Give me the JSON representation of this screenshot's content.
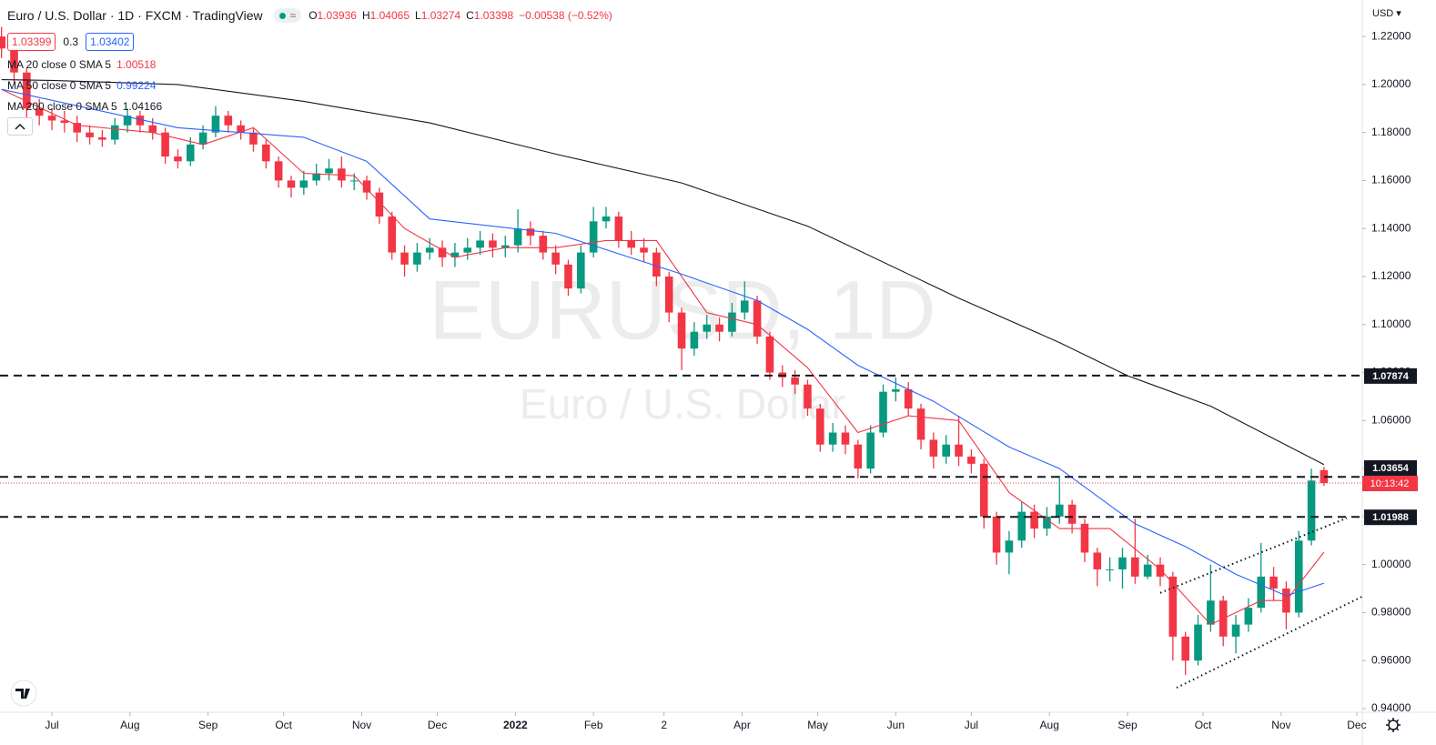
{
  "header": {
    "title": "Euro / U.S. Dollar · 1D · FXCM · TradingView",
    "ohlc": [
      {
        "key": "O",
        "value": "1.03936"
      },
      {
        "key": "H",
        "value": "1.04065"
      },
      {
        "key": "L",
        "value": "1.03274"
      },
      {
        "key": "C",
        "value": "1.03398"
      }
    ],
    "change": "−0.00538 (−0.52%)",
    "bid": "1.03399",
    "spread": "0.3",
    "ask": "1.03402",
    "currency": "USD",
    "countdown": "10:13:42",
    "watermark": "EURUSD, 1D",
    "watermark_sub": "Euro / U.S. Dollar"
  },
  "chart_data": {
    "type": "candlestick",
    "up_color": "#089981",
    "down_color": "#f23645",
    "x": [
      -20,
      -15,
      -10,
      -5,
      0,
      5,
      10,
      15,
      20,
      25,
      30,
      35,
      40,
      45,
      50,
      55,
      60,
      65,
      70,
      75,
      80,
      85,
      90,
      95,
      100,
      105,
      110,
      115,
      120,
      125,
      130,
      135,
      140,
      145,
      150,
      155,
      160,
      165,
      170,
      175,
      180,
      185,
      190,
      195,
      200,
      205,
      210,
      215,
      220,
      225,
      230,
      235,
      240,
      245,
      250,
      255,
      260,
      265,
      270,
      275,
      280,
      285,
      290,
      295,
      300,
      305,
      310,
      315,
      320,
      325,
      330,
      335,
      340,
      345,
      350,
      355,
      360,
      365,
      370,
      375,
      380,
      385,
      390,
      395,
      400,
      405,
      410,
      415,
      420,
      425,
      430,
      435,
      440,
      445,
      450,
      455,
      460,
      465,
      470,
      475,
      480,
      485,
      490,
      495,
      500,
      505
    ],
    "open": [
      1.22,
      1.215,
      1.205,
      1.19,
      1.187,
      1.185,
      1.184,
      1.18,
      1.178,
      1.177,
      1.183,
      1.187,
      1.183,
      1.18,
      1.17,
      1.168,
      1.175,
      1.18,
      1.187,
      1.183,
      1.18,
      1.175,
      1.168,
      1.16,
      1.157,
      1.16,
      1.163,
      1.165,
      1.16,
      1.16,
      1.155,
      1.145,
      1.13,
      1.125,
      1.13,
      1.132,
      1.128,
      1.13,
      1.132,
      1.135,
      1.132,
      1.133,
      1.14,
      1.137,
      1.13,
      1.125,
      1.115,
      1.13,
      1.143,
      1.145,
      1.135,
      1.132,
      1.13,
      1.12,
      1.105,
      1.09,
      1.097,
      1.1,
      1.097,
      1.105,
      1.11,
      1.095,
      1.08,
      1.078,
      1.075,
      1.065,
      1.05,
      1.055,
      1.05,
      1.04,
      1.055,
      1.072,
      1.073,
      1.065,
      1.052,
      1.045,
      1.05,
      1.045,
      1.042,
      1.02,
      1.005,
      1.01,
      1.022,
      1.015,
      1.02,
      1.025,
      1.017,
      1.005,
      0.998,
      0.998,
      1.003,
      0.995,
      1.0,
      0.995,
      0.97,
      0.96,
      0.975,
      0.985,
      0.97,
      0.975,
      0.982,
      0.995,
      0.99,
      0.98,
      1.01,
      1.03936
    ],
    "high": [
      1.224,
      1.218,
      1.207,
      1.194,
      1.19,
      1.189,
      1.187,
      1.183,
      1.181,
      1.186,
      1.19,
      1.189,
      1.186,
      1.182,
      1.173,
      1.178,
      1.183,
      1.191,
      1.189,
      1.185,
      1.182,
      1.177,
      1.17,
      1.162,
      1.164,
      1.167,
      1.169,
      1.17,
      1.163,
      1.162,
      1.157,
      1.147,
      1.133,
      1.134,
      1.136,
      1.135,
      1.134,
      1.136,
      1.139,
      1.138,
      1.137,
      1.148,
      1.143,
      1.139,
      1.133,
      1.127,
      1.133,
      1.149,
      1.149,
      1.147,
      1.139,
      1.136,
      1.132,
      1.122,
      1.107,
      1.101,
      1.104,
      1.103,
      1.109,
      1.118,
      1.112,
      1.097,
      1.083,
      1.081,
      1.077,
      1.067,
      1.059,
      1.058,
      1.052,
      1.058,
      1.075,
      1.078,
      1.076,
      1.067,
      1.055,
      1.054,
      1.062,
      1.048,
      1.044,
      1.022,
      1.014,
      1.026,
      1.025,
      1.024,
      1.037,
      1.027,
      1.019,
      1.007,
      1.003,
      1.007,
      1.019,
      1.004,
      1.003,
      0.997,
      0.972,
      0.979,
      1.0,
      0.987,
      0.979,
      0.986,
      1.009,
      0.999,
      0.993,
      1.014,
      1.04,
      1.04065
    ],
    "low": [
      1.211,
      1.201,
      1.186,
      1.183,
      1.181,
      1.18,
      1.176,
      1.175,
      1.174,
      1.175,
      1.18,
      1.18,
      1.177,
      1.167,
      1.165,
      1.166,
      1.173,
      1.178,
      1.18,
      1.177,
      1.172,
      1.165,
      1.157,
      1.153,
      1.154,
      1.158,
      1.16,
      1.157,
      1.156,
      1.152,
      1.142,
      1.127,
      1.12,
      1.122,
      1.127,
      1.124,
      1.124,
      1.127,
      1.129,
      1.128,
      1.128,
      1.13,
      1.133,
      1.127,
      1.121,
      1.112,
      1.113,
      1.128,
      1.14,
      1.132,
      1.129,
      1.126,
      1.116,
      1.101,
      1.081,
      1.087,
      1.094,
      1.093,
      1.095,
      1.102,
      1.092,
      1.077,
      1.074,
      1.071,
      1.062,
      1.047,
      1.047,
      1.046,
      1.036,
      1.038,
      1.053,
      1.068,
      1.062,
      1.048,
      1.04,
      1.042,
      1.041,
      1.038,
      1.015,
      1.0,
      0.996,
      1.007,
      1.011,
      1.012,
      1.017,
      1.013,
      1.001,
      0.991,
      0.993,
      0.99,
      0.992,
      0.994,
      0.991,
      0.96,
      0.954,
      0.958,
      0.972,
      0.966,
      0.963,
      0.972,
      0.98,
      0.985,
      0.973,
      0.978,
      1.008,
      1.03274
    ],
    "close": [
      1.215,
      1.205,
      1.19,
      1.187,
      1.185,
      1.184,
      1.18,
      1.178,
      1.177,
      1.183,
      1.187,
      1.183,
      1.18,
      1.17,
      1.168,
      1.175,
      1.18,
      1.187,
      1.183,
      1.18,
      1.175,
      1.168,
      1.16,
      1.157,
      1.16,
      1.163,
      1.165,
      1.16,
      1.16,
      1.155,
      1.145,
      1.13,
      1.125,
      1.13,
      1.132,
      1.128,
      1.13,
      1.132,
      1.135,
      1.132,
      1.133,
      1.14,
      1.137,
      1.13,
      1.125,
      1.115,
      1.13,
      1.143,
      1.145,
      1.135,
      1.132,
      1.13,
      1.12,
      1.105,
      1.09,
      1.097,
      1.1,
      1.097,
      1.105,
      1.11,
      1.095,
      1.08,
      1.078,
      1.075,
      1.065,
      1.05,
      1.055,
      1.05,
      1.04,
      1.055,
      1.072,
      1.073,
      1.065,
      1.052,
      1.045,
      1.05,
      1.045,
      1.042,
      1.02,
      1.005,
      1.01,
      1.022,
      1.015,
      1.02,
      1.025,
      1.017,
      1.005,
      0.998,
      0.998,
      1.003,
      0.995,
      1.0,
      0.995,
      0.97,
      0.96,
      0.975,
      0.985,
      0.97,
      0.975,
      0.982,
      0.995,
      0.99,
      0.98,
      1.01,
      1.035,
      1.03398
    ],
    "series": [
      {
        "name": "MA 20 close 0 SMA 5",
        "color": "#f23645",
        "x": [
          -20,
          10,
          40,
          60,
          80,
          100,
          120,
          140,
          160,
          180,
          200,
          220,
          240,
          260,
          280,
          300,
          320,
          340,
          360,
          380,
          400,
          420,
          440,
          460,
          480,
          490,
          505
        ],
        "values": [
          1.198,
          1.183,
          1.18,
          1.175,
          1.182,
          1.163,
          1.162,
          1.14,
          1.128,
          1.132,
          1.132,
          1.135,
          1.135,
          1.105,
          1.1,
          1.082,
          1.055,
          1.062,
          1.06,
          1.03,
          1.015,
          1.015,
          0.998,
          0.975,
          0.985,
          0.985,
          1.00518
        ]
      },
      {
        "name": "MA 50 close 0 SMA 5",
        "color": "#2962ff",
        "x": [
          -20,
          50,
          100,
          125,
          150,
          200,
          250,
          280,
          300,
          320,
          350,
          380,
          400,
          430,
          450,
          470,
          490,
          505
        ],
        "values": [
          1.198,
          1.182,
          1.178,
          1.168,
          1.144,
          1.138,
          1.121,
          1.11,
          1.098,
          1.083,
          1.068,
          1.049,
          1.04,
          1.017,
          1.0075,
          0.996,
          0.987,
          0.99224
        ]
      },
      {
        "name": "MA 200 close 0 SMA 5",
        "color": "#131722",
        "x": [
          -20,
          0,
          50,
          100,
          150,
          200,
          250,
          300,
          360,
          400,
          427,
          460,
          505
        ],
        "values": [
          1.202,
          1.2017,
          1.2,
          1.193,
          1.184,
          1.171,
          1.159,
          1.141,
          1.111,
          1.0925,
          1.0787,
          1.066,
          1.04166
        ]
      }
    ],
    "levels": [
      1.07874,
      1.03654,
      1.01988
    ],
    "trendlines": [
      {
        "x": [
          446.5,
          520.2
        ],
        "y": [
          0.9487,
          0.9867
        ]
      },
      {
        "x": [
          440,
          514.1
        ],
        "y": [
          0.9882,
          1.0194
        ]
      }
    ],
    "xlim": [
      -20.6,
      520.2
    ],
    "ylim": [
      0.93886,
      1.2352
    ],
    "xticks": [
      {
        "value": 0,
        "label": "Jul"
      },
      {
        "value": 31,
        "label": "Aug"
      },
      {
        "value": 62,
        "label": "Sep"
      },
      {
        "value": 92,
        "label": "Oct"
      },
      {
        "value": 123,
        "label": "Nov"
      },
      {
        "value": 153,
        "label": "Dec"
      },
      {
        "value": 184,
        "label": "2022"
      },
      {
        "value": 215,
        "label": "Feb"
      },
      {
        "value": 243,
        "label": "2"
      },
      {
        "value": 274,
        "label": "Apr"
      },
      {
        "value": 304,
        "label": "May"
      },
      {
        "value": 335,
        "label": "Jun"
      },
      {
        "value": 365,
        "label": "Jul"
      },
      {
        "value": 396,
        "label": "Aug"
      },
      {
        "value": 427,
        "label": "Sep"
      },
      {
        "value": 457,
        "label": "Oct"
      },
      {
        "value": 488,
        "label": "Nov"
      },
      {
        "value": 518,
        "label": "Dec"
      }
    ],
    "yticks": [
      {
        "value": 0.94,
        "label": "0.94000"
      },
      {
        "value": 0.96,
        "label": "0.96000"
      },
      {
        "value": 0.98,
        "label": "0.98000"
      },
      {
        "value": 1.0,
        "label": "1.00000"
      },
      {
        "value": 1.02,
        "label": "1.02000"
      },
      {
        "value": 1.04,
        "label": "1.04000"
      },
      {
        "value": 1.06,
        "label": "1.06000"
      },
      {
        "value": 1.08,
        "label": "1.08000"
      },
      {
        "value": 1.1,
        "label": "1.10000"
      },
      {
        "value": 1.12,
        "label": "1.12000"
      },
      {
        "value": 1.14,
        "label": "1.14000"
      },
      {
        "value": 1.16,
        "label": "1.16000"
      },
      {
        "value": 1.18,
        "label": "1.18000"
      },
      {
        "value": 1.2,
        "label": "1.20000"
      },
      {
        "value": 1.22,
        "label": "1.22000"
      }
    ],
    "grid": false
  }
}
